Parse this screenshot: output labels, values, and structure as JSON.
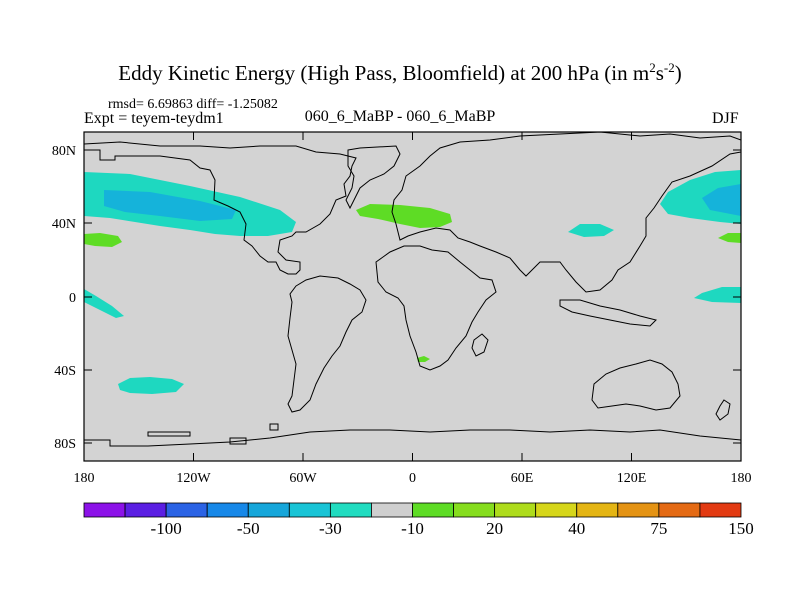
{
  "title": {
    "main": "Eddy Kinetic Energy (High Pass, Bloomfield) at 200 hPa (in m",
    "exp1": "2",
    "mid": "s",
    "exp2": "-2",
    "end": ")"
  },
  "stats": "rmsd= 6.69863 diff= -1.25082",
  "expt": "Expt = teyem-teydm1",
  "diff_label": "060_6_MaBP - 060_6_MaBP",
  "season": "DJF",
  "axes": {
    "y_ticks": [
      "80N",
      "40N",
      "0",
      "40S",
      "80S"
    ],
    "x_ticks": [
      "180",
      "120W",
      "60W",
      "0",
      "60E",
      "120E",
      "180"
    ]
  },
  "colors": {
    "land": "#d3d3d3",
    "teal": "#1ed8c0",
    "blue": "#15b3da",
    "green": "#5edc25"
  },
  "chart_data": {
    "type": "heatmap",
    "title": "Eddy Kinetic Energy (High Pass, Bloomfield) at 200 hPa (in m2s-2)",
    "field": "difference teyem-teydm1",
    "lat_range": [
      -90,
      90
    ],
    "lon_range": [
      -180,
      180
    ],
    "regions": [
      {
        "name": "north-pacific-negative",
        "level": -10
      },
      {
        "name": "north-pacific-core-negative",
        "level": -30
      },
      {
        "name": "west-pacific-negative",
        "level": -10
      },
      {
        "name": "europe-positive",
        "level": 20
      },
      {
        "name": "central-pacific-positive",
        "level": 20
      },
      {
        "name": "tropical-pacific-negative",
        "level": -10
      },
      {
        "name": "south-pacific-negative",
        "level": -10
      },
      {
        "name": "south-atlantic-positive",
        "level": 20
      }
    ]
  },
  "colorbar": {
    "colors": [
      "#8c12e8",
      "#5b1fe3",
      "#2b63e5",
      "#1788e8",
      "#16a6da",
      "#19c4d6",
      "#21dcc0",
      "#cfcfcf",
      "#5edc25",
      "#86dd1e",
      "#aedc1c",
      "#d6d61a",
      "#e4b514",
      "#e49314",
      "#e46a14",
      "#e23a12"
    ],
    "labels": [
      "-100",
      "-50",
      "-30",
      "-10",
      "20",
      "40",
      "75",
      "150"
    ]
  }
}
